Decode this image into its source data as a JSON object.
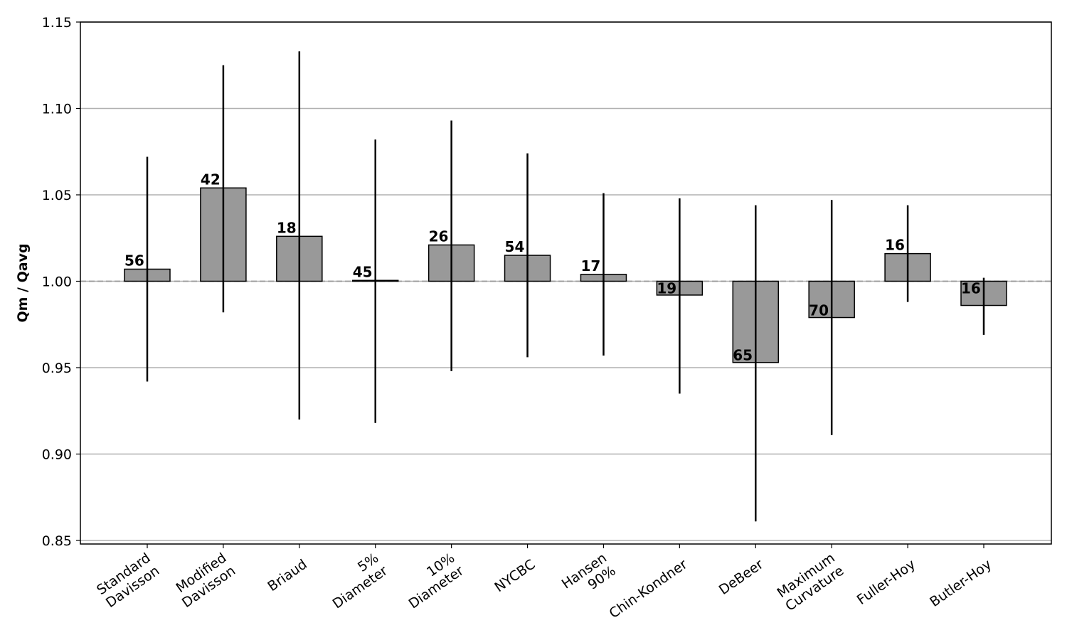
{
  "chart_data": {
    "type": "bar",
    "title": "",
    "xlabel": "",
    "ylabel": "Qm / Qavg",
    "ylim": [
      0.85,
      1.15
    ],
    "yticks": [
      "0.85",
      "0.90",
      "0.95",
      "1.00",
      "1.05",
      "1.10",
      "1.15"
    ],
    "grid": "horizontal",
    "reference_line": 1.0,
    "bar_color": "#999999",
    "error_color": "#000000",
    "categories": [
      [
        "Standard",
        "Davisson"
      ],
      [
        "Modified",
        "Davisson"
      ],
      [
        "Briaud"
      ],
      [
        "5%",
        "Diameter"
      ],
      [
        "10%",
        "Diameter"
      ],
      [
        "NYCBC"
      ],
      [
        "Hansen",
        "90%"
      ],
      [
        "Chin-Kondner"
      ],
      [
        "DeBeer"
      ],
      [
        "Maximum",
        "Curvature"
      ],
      [
        "Fuller-Hoy"
      ],
      [
        "Butler-Hoy"
      ]
    ],
    "values": [
      1.007,
      1.054,
      1.026,
      1.0005,
      1.021,
      1.015,
      1.004,
      0.992,
      0.953,
      0.979,
      1.016,
      0.986
    ],
    "error_low": [
      0.942,
      0.982,
      0.92,
      0.918,
      0.948,
      0.956,
      0.957,
      0.935,
      0.861,
      0.911,
      0.988,
      0.969
    ],
    "error_high": [
      1.072,
      1.125,
      1.133,
      1.082,
      1.093,
      1.074,
      1.051,
      1.048,
      1.044,
      1.047,
      1.044,
      1.002
    ],
    "counts": [
      "56",
      "42",
      "18",
      "45",
      "26",
      "54",
      "17",
      "19",
      "65",
      "70",
      "16",
      "16"
    ]
  }
}
